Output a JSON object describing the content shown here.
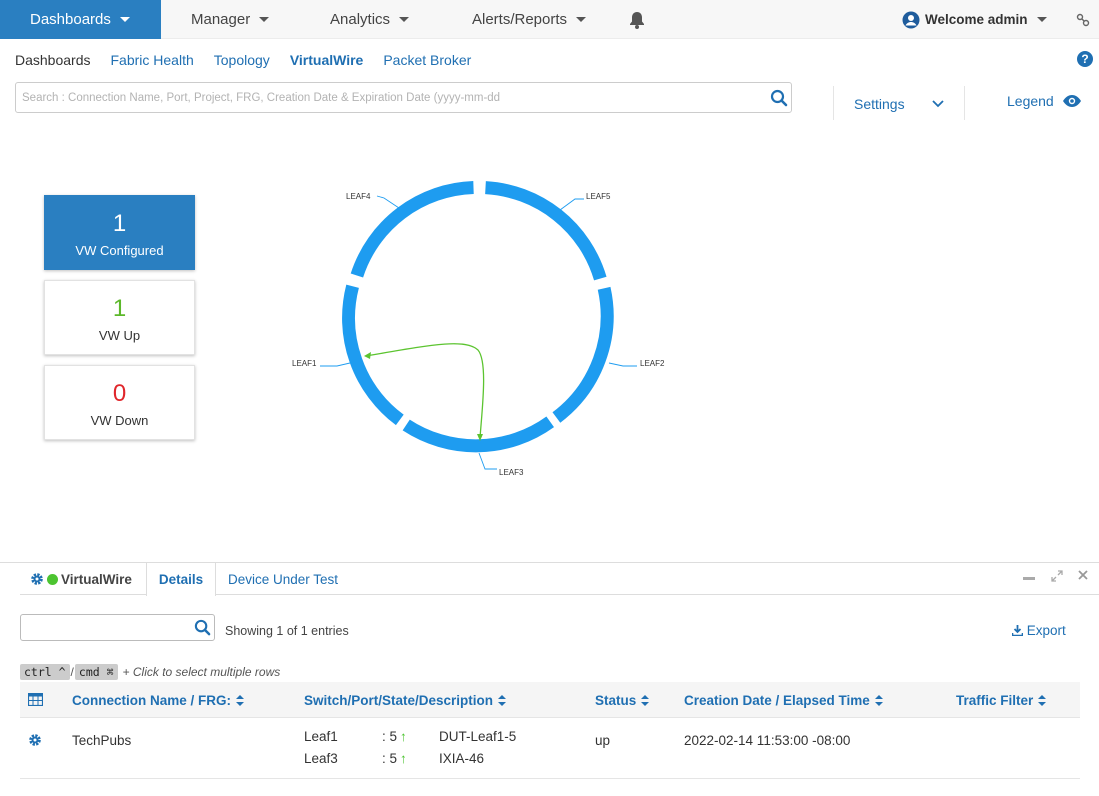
{
  "nav": {
    "dashboards": "Dashboards",
    "manager": "Manager",
    "analytics": "Analytics",
    "alerts": "Alerts/Reports",
    "welcome": "Welcome admin"
  },
  "subnav": {
    "dashboards": "Dashboards",
    "fabric_health": "Fabric Health",
    "topology": "Topology",
    "virtualwire": "VirtualWire",
    "packet_broker": "Packet Broker"
  },
  "search": {
    "placeholder": "Search : Connection Name, Port, Project, FRG, Creation Date & Expiration Date (yyyy-mm-dd"
  },
  "settings_label": "Settings",
  "legend_label": "Legend",
  "counters": [
    {
      "value": "1",
      "label": "VW Configured",
      "color": "#ffffff"
    },
    {
      "value": "1",
      "label": "VW Up",
      "color": "#5cb82a"
    },
    {
      "value": "0",
      "label": "VW Down",
      "color": "#e0262b"
    }
  ],
  "ring": {
    "color": "#1e9cf0",
    "link_color": "#5cc430",
    "nodes": [
      "LEAF4",
      "LEAF5",
      "LEAF1",
      "LEAF2",
      "LEAF3"
    ]
  },
  "panel": {
    "tab_vw": "VirtualWire",
    "tab_details": "Details",
    "tab_dut": "Device Under Test",
    "showing": "Showing 1 of 1 entries",
    "export": "Export",
    "hint_ctrl": "ctrl ^",
    "hint_sep": "/",
    "hint_cmd": "cmd ⌘",
    "hint_text": "+ Click to select multiple rows",
    "columns": {
      "connection": "Connection Name / FRG:",
      "switch": "Switch/Port/State/Description",
      "status": "Status",
      "creation": "Creation Date / Elapsed Time",
      "traffic": "Traffic Filter"
    },
    "row": {
      "name": "TechPubs",
      "switch1": "Leaf1",
      "port1": ": 5",
      "desc1": "DUT-Leaf1-5",
      "switch2": "Leaf3",
      "port2": ": 5",
      "desc2": "IXIA-46",
      "status": "up",
      "created": "2022-02-14 11:53:00 -08:00"
    }
  }
}
